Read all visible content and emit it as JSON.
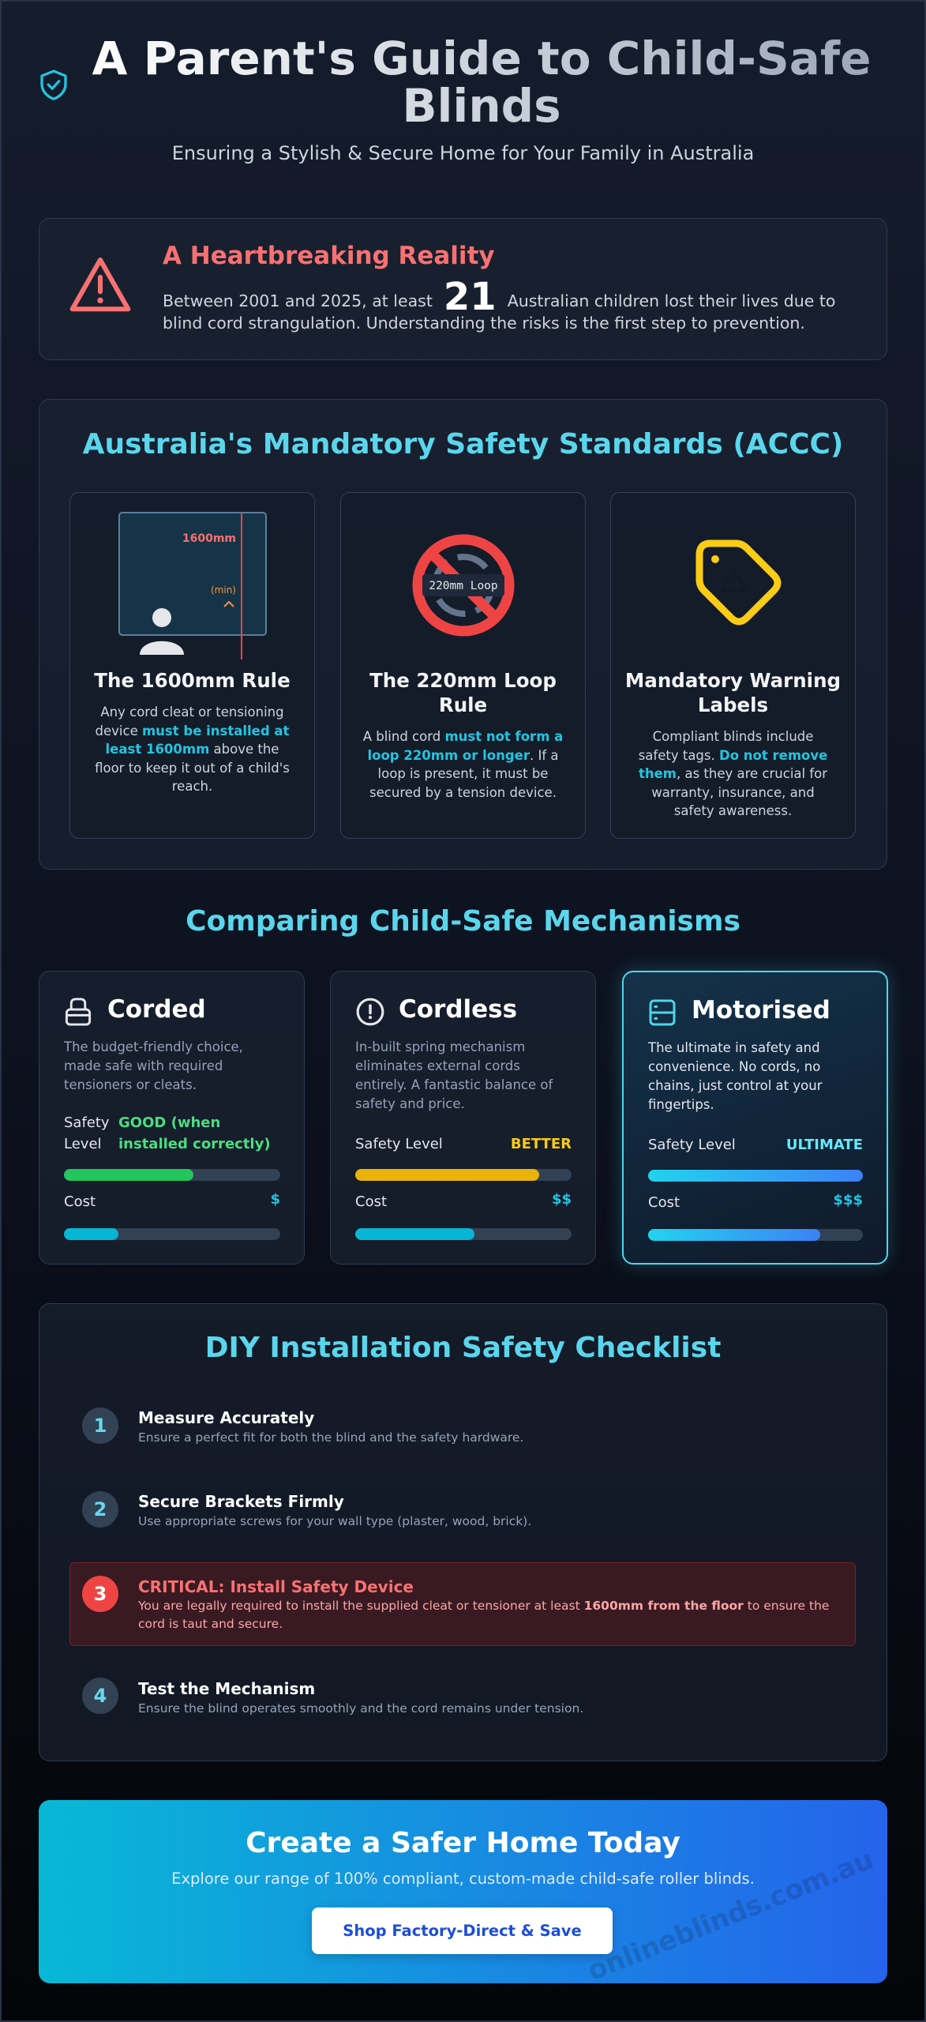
{
  "header": {
    "title": "A Parent's Guide to Child-Safe Blinds",
    "subtitle": "Ensuring a Stylish & Secure Home for Your Family in Australia"
  },
  "alert": {
    "title": "A Heartbreaking Reality",
    "text": [
      "Between 2001 and 2025, at least",
      "21",
      "Australian children lost their lives due to blind cord strangulation. Understanding the risks is the first step to prevention."
    ]
  },
  "standards": {
    "title": "Australia's Mandatory Safety Standards (ACCC)",
    "cards": [
      {
        "diagram": [
          "1600mm",
          "(min)"
        ],
        "title": "The 1600mm Rule",
        "text": [
          "Any cord cleat or tensioning device ",
          "must be installed at least 1600mm",
          " above the floor to keep it out of a child's reach."
        ]
      },
      {
        "diagram": [
          "220mm Loop"
        ],
        "title": "The 220mm Loop Rule",
        "text": [
          "A blind cord ",
          "must not form a loop 220mm or longer",
          ". If a loop is present, it must be secured by a tension device."
        ]
      },
      {
        "diagram": [],
        "title": "Mandatory Warning Labels",
        "text": [
          "Compliant blinds include safety tags. ",
          "Do not remove them",
          ", as they are crucial for warranty, insurance, and safety awareness."
        ]
      }
    ]
  },
  "mechanisms": {
    "title": "Comparing Child-Safe Mechanisms",
    "cards": [
      {
        "name": "Corded",
        "text": "The budget-friendly choice, made safe with required tensioners or cleats.",
        "safety_label": "Safety Level",
        "safety": "GOOD (when installed correctly)",
        "cost_label": "Cost",
        "cost": "$"
      },
      {
        "name": "Cordless",
        "text": "In-built spring mechanism eliminates external cords entirely. A fantastic balance of safety and price.",
        "safety_label": "Safety Level",
        "safety": "BETTER",
        "cost_label": "Cost",
        "cost": "$$"
      },
      {
        "name": "Motorised",
        "text": "The ultimate in safety and convenience. No cords, no chains, just control at your fingertips.",
        "safety_label": "Safety Level",
        "safety": "ULTIMATE",
        "cost_label": "Cost",
        "cost": "$$$"
      }
    ]
  },
  "checklist": {
    "title": "DIY Installation Safety Checklist",
    "items": [
      {
        "number": "1",
        "title": "Measure Accurately",
        "text": [
          "Ensure a perfect fit for both the blind and the safety hardware."
        ]
      },
      {
        "number": "2",
        "title": "Secure Brackets Firmly",
        "text": [
          "Use appropriate screws for your wall type (plaster, wood, brick)."
        ]
      },
      {
        "number": "3",
        "title": "CRITICAL: Install Safety Device",
        "text": [
          "You are legally required to install the supplied cleat or tensioner at least ",
          "1600mm from the floor",
          " to ensure the cord is taut and secure."
        ]
      },
      {
        "number": "4",
        "title": "Test the Mechanism",
        "text": [
          "Ensure the blind operates smoothly and the cord remains under tension."
        ]
      }
    ]
  },
  "cta": {
    "title": "Create a Safer Home Today",
    "text": "Explore our range of 100% compliant, custom-made child-safe roller blinds.",
    "button": "Shop Factory-Direct & Save",
    "watermark": "onlineblinds.com.au"
  }
}
